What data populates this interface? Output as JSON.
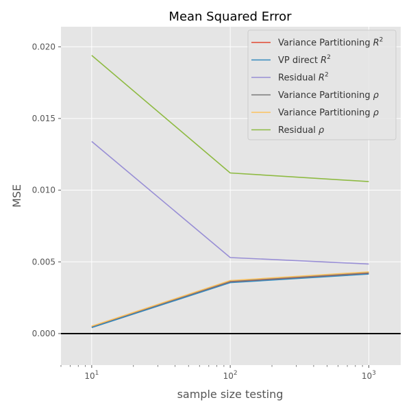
{
  "chart_data": {
    "type": "line",
    "title": "Mean Squared Error",
    "xlabel": "sample size testing",
    "ylabel": "MSE",
    "xscale": "log",
    "xlim": [
      6,
      1700
    ],
    "ylim": [
      -0.0022,
      0.0214
    ],
    "grid": true,
    "legend_position": "top-right",
    "x": [
      10,
      100,
      1000
    ],
    "x_ticks": [
      {
        "value": 10,
        "base": "10",
        "exp": "1"
      },
      {
        "value": 100,
        "base": "10",
        "exp": "2"
      },
      {
        "value": 1000,
        "base": "10",
        "exp": "3"
      }
    ],
    "y_ticks": [
      {
        "value": 0.0,
        "label": "0.000"
      },
      {
        "value": 0.005,
        "label": "0.005"
      },
      {
        "value": 0.01,
        "label": "0.010"
      },
      {
        "value": 0.015,
        "label": "0.015"
      },
      {
        "value": 0.02,
        "label": "0.020"
      }
    ],
    "hline": 0.0,
    "series": [
      {
        "name": "Variance Partitioning",
        "symbol": "R",
        "sup": "2",
        "color": "#e24a33",
        "values": [
          0.00045,
          0.0036,
          0.0042
        ]
      },
      {
        "name": "VP direct",
        "symbol": "R",
        "sup": "2",
        "color": "#348abd",
        "values": [
          0.00042,
          0.00355,
          0.00415
        ]
      },
      {
        "name": "Residual",
        "symbol": "R",
        "sup": "2",
        "color": "#988ed5",
        "values": [
          0.0134,
          0.0053,
          0.00485
        ]
      },
      {
        "name": "Variance Partitioning",
        "symbol": "ρ",
        "sup": "",
        "color": "#777777",
        "values": [
          0.0005,
          0.00365,
          0.00425
        ]
      },
      {
        "name": "Variance Partitioning",
        "symbol": "ρ",
        "sup": "",
        "color": "#fbc15e",
        "values": [
          0.00052,
          0.0037,
          0.0043
        ]
      },
      {
        "name": "Residual",
        "symbol": "ρ",
        "sup": "",
        "color": "#8eba42",
        "values": [
          0.0194,
          0.0112,
          0.0106
        ]
      }
    ]
  }
}
